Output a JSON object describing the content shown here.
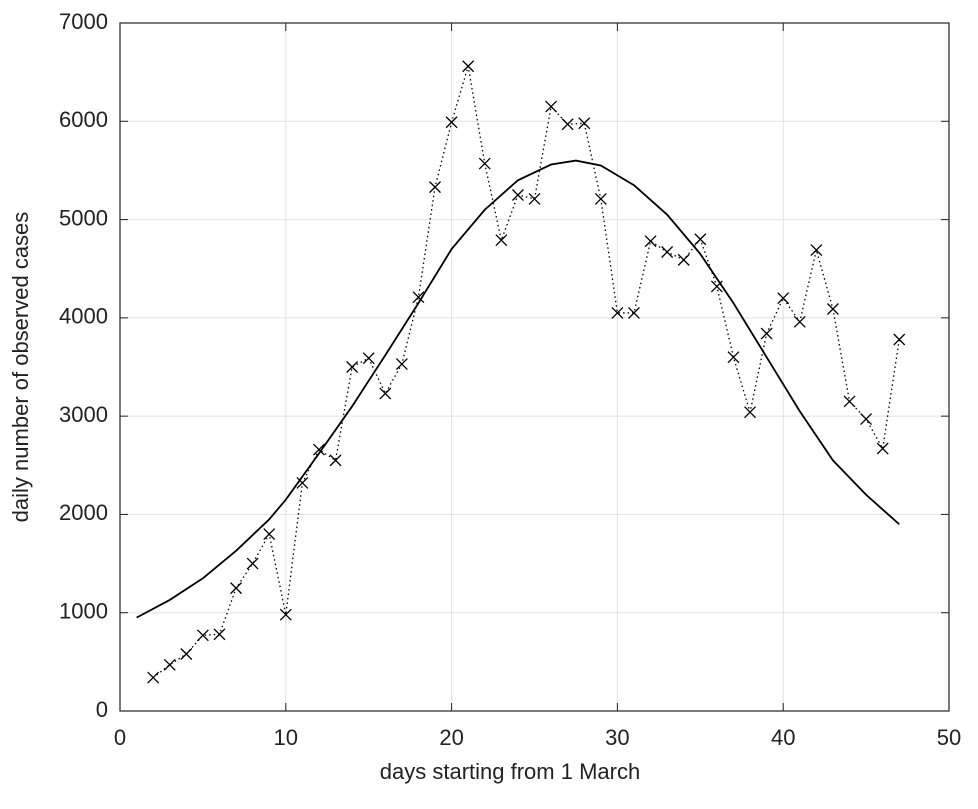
{
  "chart_data": {
    "type": "line",
    "xlabel": "days starting from 1 March",
    "ylabel": "daily number of observed cases",
    "xlim": [
      0,
      50
    ],
    "xticks": [
      0,
      10,
      20,
      30,
      40,
      50
    ],
    "ylim": [
      0,
      7000
    ],
    "yticks": [
      0,
      1000,
      2000,
      3000,
      4000,
      5000,
      6000,
      7000
    ],
    "grid": true,
    "series": [
      {
        "color": "#000000",
        "marker": "x",
        "line_style": "dotted",
        "x": [
          2,
          3,
          4,
          5,
          6,
          7,
          8,
          9,
          10,
          11,
          12,
          13,
          14,
          15,
          16,
          17,
          18,
          19,
          20,
          21,
          22,
          23,
          24,
          25,
          26,
          27,
          28,
          29,
          30,
          31,
          32,
          33,
          34,
          35,
          36,
          37,
          38,
          39,
          40,
          41,
          42,
          43,
          44,
          45,
          46,
          47
        ],
        "values": [
          340,
          470,
          580,
          770,
          780,
          1250,
          1500,
          1800,
          980,
          2320,
          2660,
          2550,
          3500,
          3590,
          3230,
          3530,
          4210,
          5330,
          5990,
          6560,
          5570,
          4790,
          5250,
          5210,
          6150,
          5970,
          5980,
          5210,
          4050,
          4050,
          4780,
          4670,
          4590,
          4800,
          4320,
          3600,
          3040,
          3840,
          4200,
          3960,
          4690,
          4090,
          3150,
          2970,
          2670,
          3780
        ]
      },
      {
        "color": "#000000",
        "marker": "none",
        "line_style": "solid",
        "x": [
          1,
          3,
          5,
          7,
          9,
          10,
          12,
          14,
          16,
          18,
          20,
          22,
          24,
          26,
          27.5,
          29,
          31,
          33,
          35,
          37,
          39,
          41,
          43,
          45,
          47
        ],
        "values": [
          950,
          1130,
          1350,
          1630,
          1950,
          2150,
          2620,
          3100,
          3620,
          4150,
          4700,
          5100,
          5400,
          5560,
          5600,
          5550,
          5350,
          5050,
          4650,
          4150,
          3600,
          3050,
          2550,
          2200,
          1900
        ]
      }
    ]
  }
}
